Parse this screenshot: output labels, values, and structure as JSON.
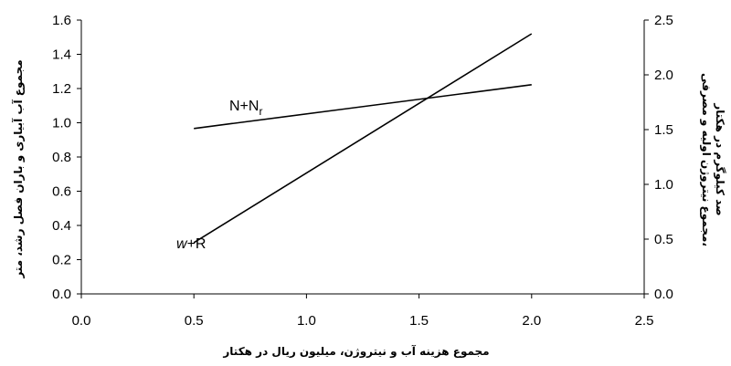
{
  "chart_data": {
    "type": "line",
    "xlabel": "مجموع هزینه آب و نیتروژن، میلیون ریال در هکتار",
    "ylabel_left": "مجموع آب آبیاری و باران فصل رشد، متر",
    "ylabel_right_line1": "مجموع نیتروژن اولیه و مصرفی،",
    "ylabel_right_line2": "صد کیلوگرم در هکتار",
    "xlim": [
      0,
      2.5
    ],
    "ylim_left": [
      0,
      1.6
    ],
    "ylim_right": [
      0,
      2.5
    ],
    "x_ticks": [
      "0.0",
      "0.5",
      "1.0",
      "1.5",
      "2.0",
      "2.5"
    ],
    "y_left_ticks": [
      "0.0",
      "0.2",
      "0.4",
      "0.6",
      "0.8",
      "1.0",
      "1.2",
      "1.4",
      "1.6"
    ],
    "y_right_ticks": [
      "0.0",
      "0.5",
      "1.0",
      "1.5",
      "2.0",
      "2.5"
    ],
    "series": [
      {
        "label_main": "w",
        "label_rest": "+R",
        "axis": "left",
        "x": [
          0.5,
          2.0
        ],
        "y": [
          0.3,
          1.52
        ]
      },
      {
        "label_main": "N+N",
        "label_sub": "r",
        "axis": "right",
        "x": [
          0.5,
          2.0
        ],
        "y": [
          1.51,
          1.91
        ]
      }
    ],
    "grid": false,
    "legend": "none"
  }
}
